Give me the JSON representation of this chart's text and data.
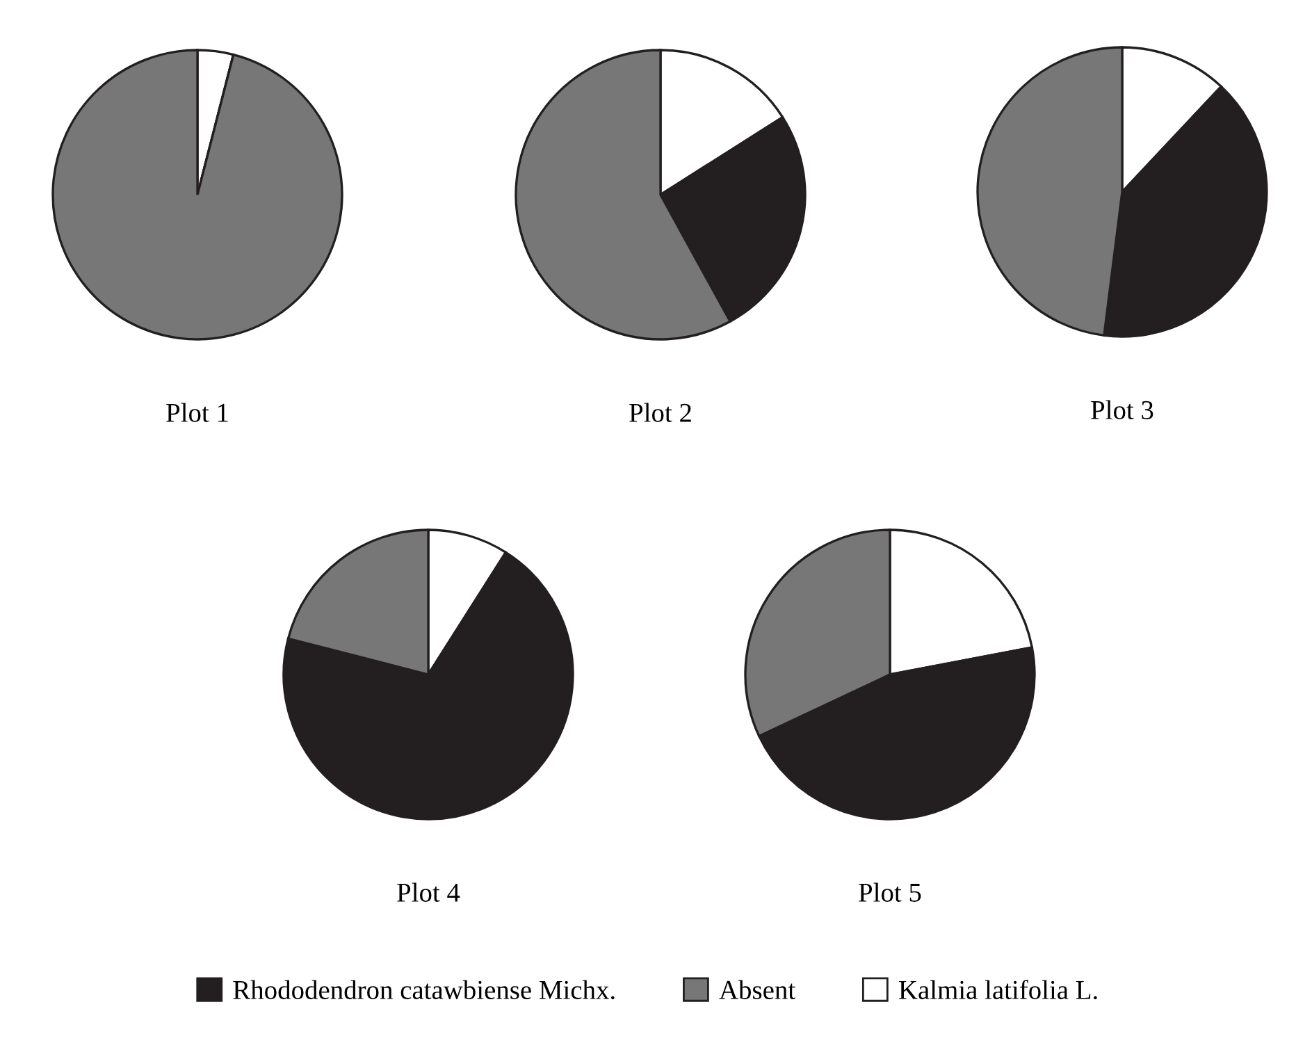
{
  "chart_data": [
    {
      "type": "pie",
      "title": "Plot 1",
      "categories": [
        "Kalmia latifolia L.",
        "Rhododendron catawbiense Michx.",
        "Absent"
      ],
      "values": [
        4,
        0,
        96
      ],
      "colors": [
        "#ffffff",
        "#231f20",
        "#777777"
      ],
      "legend": "bottom"
    },
    {
      "type": "pie",
      "title": "Plot 2",
      "values": [
        16,
        26,
        58
      ],
      "colors": [
        "#ffffff",
        "#231f20",
        "#777777"
      ]
    },
    {
      "type": "pie",
      "title": "Plot 3",
      "values": [
        12,
        40,
        48
      ],
      "colors": [
        "#ffffff",
        "#231f20",
        "#777777"
      ]
    },
    {
      "type": "pie",
      "title": "Plot 4",
      "values": [
        9,
        70,
        21
      ],
      "colors": [
        "#ffffff",
        "#231f20",
        "#777777"
      ]
    },
    {
      "type": "pie",
      "title": "Plot 5",
      "values": [
        22,
        46,
        32
      ],
      "colors": [
        "#ffffff",
        "#231f20",
        "#777777"
      ]
    }
  ]
}
